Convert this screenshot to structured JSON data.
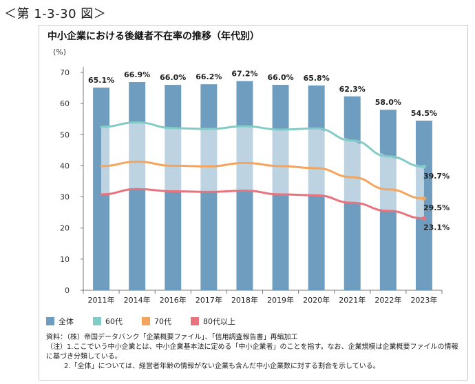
{
  "figure_number": "＜第 1-3-30 図＞",
  "chart_data": {
    "type": "bar",
    "title": "中小企業における後継者不在率の推移（年代別）",
    "ylabel": "(%)",
    "xlabel": "",
    "ylim": [
      0,
      70
    ],
    "yticks": [
      0,
      10,
      20,
      30,
      40,
      50,
      60,
      70
    ],
    "categories": [
      "2011年",
      "2014年",
      "2016年",
      "2017年",
      "2018年",
      "2019年",
      "2020年",
      "2021年",
      "2022年",
      "2023年"
    ],
    "series": [
      {
        "name": "全体",
        "kind": "bar",
        "color": "#6f9dbf",
        "values": [
          65.1,
          66.9,
          66.0,
          66.2,
          67.2,
          66.0,
          65.8,
          62.3,
          58.0,
          54.5
        ],
        "labels": [
          "65.1%",
          "66.9%",
          "66.0%",
          "66.2%",
          "67.2%",
          "66.0%",
          "65.8%",
          "62.3%",
          "58.0%",
          "54.5%"
        ]
      },
      {
        "name": "60代",
        "kind": "line",
        "color": "#83cbc6",
        "values": [
          52.5,
          53.9,
          52.1,
          51.8,
          52.7,
          51.6,
          52.0,
          48.1,
          43.0,
          39.7
        ],
        "end_label": "39.7%"
      },
      {
        "name": "70代",
        "kind": "line",
        "color": "#f5a45e",
        "values": [
          39.9,
          41.3,
          40.0,
          39.8,
          40.9,
          39.9,
          39.2,
          36.3,
          32.4,
          29.5
        ],
        "end_label": "29.5%"
      },
      {
        "name": "80代以上",
        "kind": "line",
        "color": "#e8737d",
        "values": [
          30.8,
          32.5,
          31.8,
          31.6,
          32.0,
          30.8,
          30.5,
          28.1,
          25.5,
          23.1
        ],
        "end_label": "23.1%"
      }
    ],
    "grid": false,
    "legend_position": "bottom-left"
  },
  "notes": [
    "資料：（株）帝国データバンク「企業概要ファイル」、「信用調査報告書」再編加工",
    "（注）1.ここでいう中小企業とは、中小企業基本法に定める「中小企業者」のことを指す。なお、企業規模は企業概要ファイルの情報に基づき分類している。",
    "2.「全体」については、経営者年齢の情報がない企業も含んだ中小企業数に対する割合を示している。"
  ]
}
